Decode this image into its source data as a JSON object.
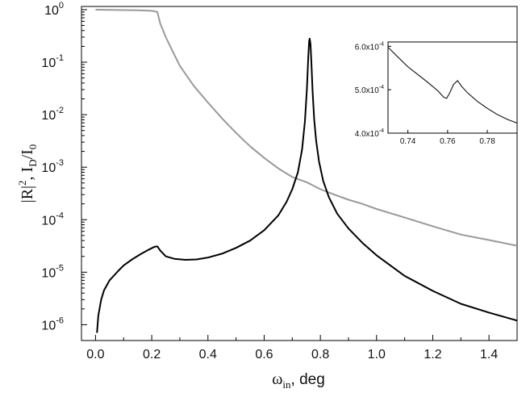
{
  "chart_data": [
    {
      "type": "line",
      "xlabel": "ω_in, deg",
      "ylabel": "|R|², I_D/I_0",
      "xlabel_parts": {
        "symbol": "ω",
        "subscript": "in",
        "rest": ", deg"
      },
      "ylabel_parts": {
        "p1": "|R|",
        "sup": "2",
        "p2": ", I",
        "sub1": "D",
        "p3": "/I",
        "sub2": "0"
      },
      "xlim": [
        -0.05,
        1.5
      ],
      "ylim": [
        5e-07,
        1.15
      ],
      "yscale": "log",
      "x_ticks": [
        0.0,
        0.2,
        0.4,
        0.6,
        0.8,
        1.0,
        1.2,
        1.4
      ],
      "x_tick_labels": [
        "0.0",
        "0.2",
        "0.4",
        "0.6",
        "0.8",
        "1.0",
        "1.2",
        "1.4"
      ],
      "y_ticks": [
        {
          "value": 1e-06,
          "base": "10",
          "exp": "-6"
        },
        {
          "value": 1e-05,
          "base": "10",
          "exp": "-5"
        },
        {
          "value": 0.0001,
          "base": "10",
          "exp": "-4"
        },
        {
          "value": 0.001,
          "base": "10",
          "exp": "-3"
        },
        {
          "value": 0.01,
          "base": "10",
          "exp": "-2"
        },
        {
          "value": 0.1,
          "base": "10",
          "exp": "-1"
        },
        {
          "value": 1,
          "base": "10",
          "exp": "0"
        }
      ],
      "grid": false,
      "series": [
        {
          "color": "#999999",
          "x": [
            0.0,
            0.05,
            0.1,
            0.15,
            0.2,
            0.21,
            0.22,
            0.23,
            0.25,
            0.27,
            0.3,
            0.35,
            0.4,
            0.45,
            0.5,
            0.55,
            0.6,
            0.65,
            0.7,
            0.75,
            0.76,
            0.77,
            0.8,
            0.85,
            0.9,
            0.95,
            1.0,
            1.1,
            1.2,
            1.3,
            1.4,
            1.5
          ],
          "y": [
            1.0,
            0.99,
            0.98,
            0.97,
            0.95,
            0.93,
            0.9,
            0.55,
            0.3,
            0.18,
            0.085,
            0.035,
            0.017,
            0.0085,
            0.0045,
            0.0025,
            0.0015,
            0.00095,
            0.00065,
            0.00052,
            0.00049,
            0.00046,
            0.00038,
            0.0003,
            0.00024,
            0.0002,
            0.00016,
            0.00011,
            7.5e-05,
            5.2e-05,
            4.1e-05,
            3.2e-05
          ]
        },
        {
          "color": "#000000",
          "x": [
            0.005,
            0.01,
            0.02,
            0.03,
            0.05,
            0.08,
            0.1,
            0.13,
            0.16,
            0.19,
            0.21,
            0.22,
            0.23,
            0.25,
            0.28,
            0.32,
            0.36,
            0.4,
            0.45,
            0.5,
            0.55,
            0.6,
            0.65,
            0.68,
            0.7,
            0.72,
            0.735,
            0.745,
            0.752,
            0.757,
            0.76,
            0.762,
            0.765,
            0.768,
            0.772,
            0.778,
            0.785,
            0.795,
            0.81,
            0.83,
            0.86,
            0.9,
            0.95,
            1.0,
            1.1,
            1.2,
            1.3,
            1.4,
            1.5
          ],
          "y": [
            7e-07,
            1.5e-06,
            3e-06,
            4.5e-06,
            7e-06,
            1.05e-05,
            1.35e-05,
            1.75e-05,
            2.2e-05,
            2.7e-05,
            3.05e-05,
            3.1e-05,
            2.6e-05,
            2e-05,
            1.8e-05,
            1.72e-05,
            1.75e-05,
            1.9e-05,
            2.25e-05,
            2.9e-05,
            4e-05,
            6.3e-05,
            0.00012,
            0.00022,
            0.00038,
            0.0008,
            0.0022,
            0.0075,
            0.03,
            0.12,
            0.25,
            0.28,
            0.22,
            0.1,
            0.03,
            0.008,
            0.0032,
            0.0013,
            0.00055,
            0.00027,
            0.00013,
            6.8e-05,
            3.6e-05,
            2.1e-05,
            8.5e-06,
            4.4e-06,
            2.5e-06,
            1.7e-06,
            1.2e-06
          ]
        }
      ]
    },
    {
      "type": "line",
      "inset": true,
      "xlim": [
        0.73,
        0.795
      ],
      "ylim": [
        0.0004,
        0.00061
      ],
      "yscale": "linear",
      "x_ticks": [
        0.74,
        0.76,
        0.78
      ],
      "x_tick_labels": [
        "0.74",
        "0.76",
        "0.78"
      ],
      "y_ticks": [
        {
          "value": 0.0004,
          "mant": "4.0x10",
          "exp": "-4"
        },
        {
          "value": 0.0005,
          "mant": "5.0x10",
          "exp": "-4"
        },
        {
          "value": 0.0006,
          "mant": "6.0x10",
          "exp": "-4"
        }
      ],
      "grid": false,
      "series": [
        {
          "color": "#222222",
          "x": [
            0.73,
            0.735,
            0.74,
            0.745,
            0.75,
            0.755,
            0.758,
            0.7595,
            0.761,
            0.763,
            0.765,
            0.767,
            0.77,
            0.775,
            0.78,
            0.785,
            0.79,
            0.795
          ],
          "y": [
            0.000598,
            0.000575,
            0.000553,
            0.000535,
            0.000517,
            0.000498,
            0.000483,
            0.00048,
            0.000492,
            0.000512,
            0.000521,
            0.000508,
            0.000493,
            0.000473,
            0.000457,
            0.000443,
            0.000432,
            0.000423
          ]
        }
      ]
    }
  ]
}
